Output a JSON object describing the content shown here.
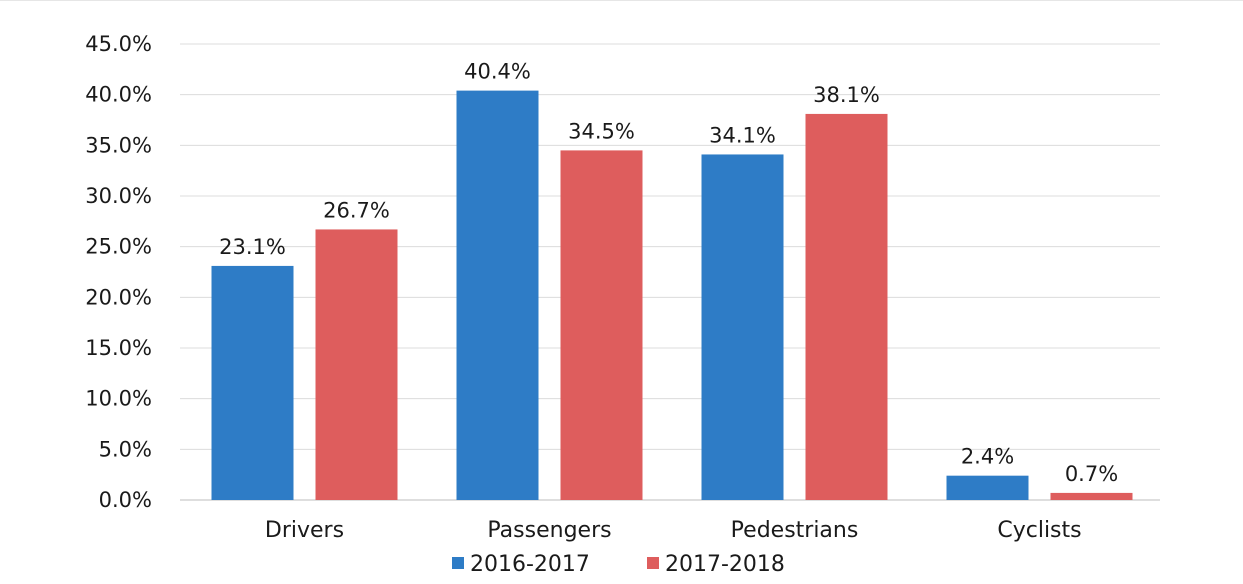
{
  "chart_data": {
    "type": "bar",
    "categories": [
      "Drivers",
      "Passengers",
      "Pedestrians",
      "Cyclists"
    ],
    "series": [
      {
        "name": "2016-2017",
        "color": "#2e7cc6",
        "values": [
          23.1,
          40.4,
          34.1,
          2.4
        ],
        "labels": [
          "23.1%",
          "40.4%",
          "34.1%",
          "2.4%"
        ]
      },
      {
        "name": "2017-2018",
        "color": "#de5d5d",
        "values": [
          26.7,
          34.5,
          38.1,
          0.7
        ],
        "labels": [
          "26.7%",
          "34.5%",
          "38.1%",
          "0.7%"
        ]
      }
    ],
    "ylim": [
      0,
      45
    ],
    "yticks": [
      "0.0%",
      "5.0%",
      "10.0%",
      "15.0%",
      "20.0%",
      "25.0%",
      "30.0%",
      "35.0%",
      "40.0%",
      "45.0%"
    ],
    "grid": true,
    "legend_position": "bottom"
  }
}
